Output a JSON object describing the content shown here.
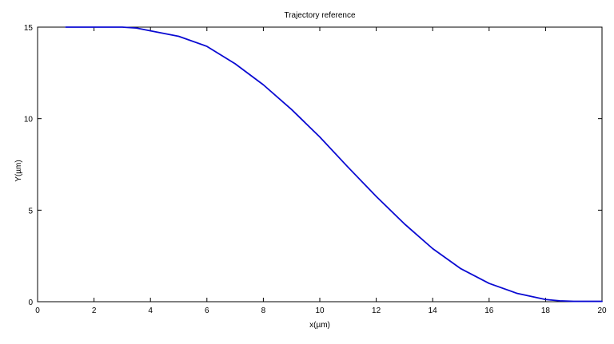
{
  "chart_data": {
    "type": "line",
    "title": "Trajectory reference",
    "xlabel": "x(µm)",
    "ylabel": "Y(µm)",
    "xlim": [
      0,
      20
    ],
    "ylim": [
      0,
      15
    ],
    "xticks": [
      0,
      2,
      4,
      6,
      8,
      10,
      12,
      14,
      16,
      18,
      20
    ],
    "yticks": [
      0,
      5,
      10,
      15
    ],
    "grid": false,
    "series": [
      {
        "color": "#0a0ad2",
        "x": [
          1.0,
          2.0,
          3.0,
          3.5,
          4.0,
          5.0,
          6.0,
          7.0,
          8.0,
          9.0,
          10.0,
          11.0,
          12.0,
          13.0,
          14.0,
          15.0,
          16.0,
          17.0,
          18.0,
          18.5,
          19.0,
          20.0
        ],
        "y": [
          15.0,
          15.0,
          15.0,
          14.95,
          14.8,
          14.5,
          13.95,
          13.0,
          11.85,
          10.5,
          9.0,
          7.35,
          5.75,
          4.25,
          2.9,
          1.8,
          1.0,
          0.45,
          0.12,
          0.05,
          0.02,
          0.02
        ]
      }
    ]
  }
}
